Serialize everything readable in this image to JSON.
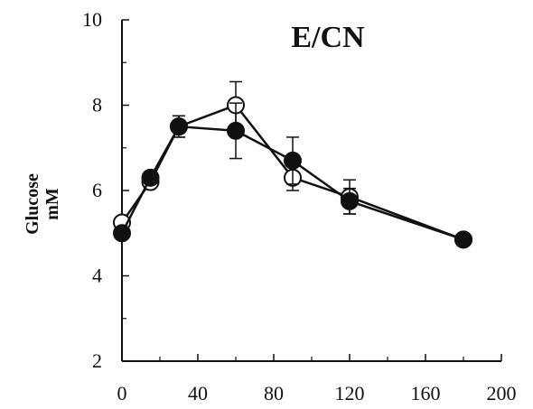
{
  "chart_data": {
    "type": "line",
    "title": "E/CN",
    "xlabel": "",
    "ylabel_lines": [
      "Glucose",
      "mM"
    ],
    "xlim": [
      0,
      200
    ],
    "ylim": [
      2,
      10
    ],
    "x_ticks": [
      0,
      40,
      80,
      120,
      160,
      200
    ],
    "y_ticks": [
      2,
      4,
      6,
      8,
      10
    ],
    "grid": false,
    "series": [
      {
        "marker": "open-circle",
        "color": "#111111",
        "x": [
          0,
          15,
          30,
          60,
          90,
          120,
          180
        ],
        "y": [
          5.25,
          6.2,
          7.5,
          8.0,
          6.3,
          5.85,
          4.85
        ],
        "err": [
          0,
          0.1,
          0.25,
          0.55,
          0.3,
          0.4,
          0
        ]
      },
      {
        "marker": "filled-circle",
        "color": "#111111",
        "x": [
          0,
          15,
          30,
          60,
          90,
          120,
          180
        ],
        "y": [
          5.0,
          6.3,
          7.5,
          7.4,
          6.7,
          5.75,
          4.85
        ],
        "err": [
          0,
          0.1,
          0.25,
          0.65,
          0.55,
          0.3,
          0
        ]
      }
    ]
  }
}
